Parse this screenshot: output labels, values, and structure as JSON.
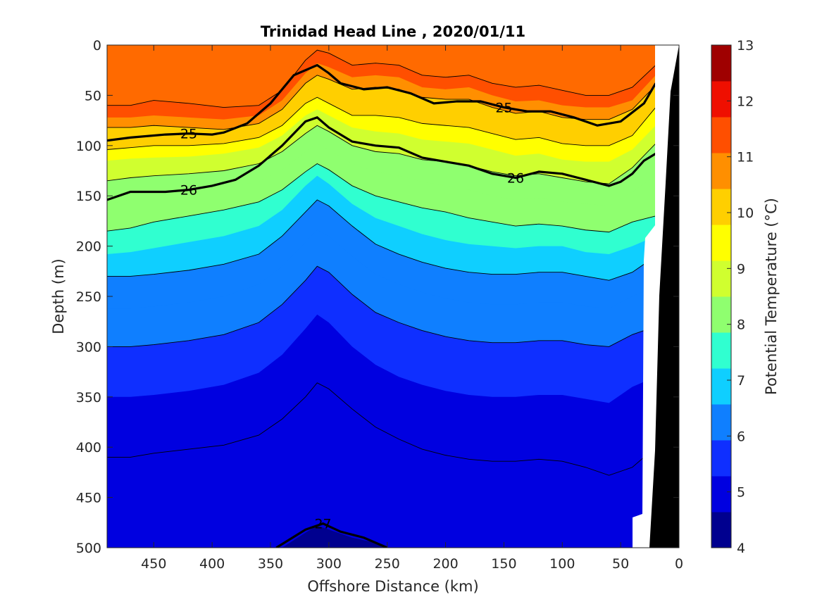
{
  "chart_data": {
    "type": "contour",
    "title": "Trinidad Head Line , 2020/01/11",
    "xlabel": "Offshore Distance (km)",
    "ylabel": "Depth (m)",
    "colorbar_label": "Potential Temperature (°C)",
    "xlim": [
      490,
      0
    ],
    "ylim": [
      500,
      0
    ],
    "x_ticks": [
      "450",
      "400",
      "350",
      "300",
      "250",
      "200",
      "150",
      "100",
      "50",
      "0"
    ],
    "y_ticks": [
      "0",
      "50",
      "100",
      "150",
      "200",
      "250",
      "300",
      "350",
      "400",
      "450",
      "500"
    ],
    "colorbar_ticks": [
      "4",
      "5",
      "6",
      "7",
      "8",
      "9",
      "10",
      "11",
      "12",
      "13"
    ],
    "colorbar_range": [
      4,
      13
    ],
    "colormap": [
      "#00008f",
      "#0000e0",
      "#0f2fff",
      "#0f7fff",
      "#0fcfff",
      "#30ffd0",
      "#8fff6f",
      "#d0ff2f",
      "#ffff00",
      "#ffcf00",
      "#ff8f00",
      "#ff4f00",
      "#ef0f00",
      "#9f0000"
    ],
    "x_offshore_km": [
      490,
      470,
      450,
      420,
      390,
      360,
      340,
      320,
      310,
      300,
      280,
      260,
      240,
      220,
      200,
      180,
      160,
      140,
      120,
      100,
      80,
      60,
      40,
      20
    ],
    "temperature_isotherm_depths_m": [
      {
        "level": 12,
        "depths": [
          60,
          60,
          55,
          58,
          62,
          60,
          45,
          15,
          5,
          8,
          20,
          18,
          20,
          30,
          32,
          30,
          38,
          42,
          40,
          45,
          50,
          50,
          42,
          20
        ]
      },
      {
        "level": 11.5,
        "depths": [
          72,
          72,
          70,
          72,
          74,
          70,
          55,
          28,
          18,
          22,
          32,
          30,
          32,
          42,
          44,
          42,
          50,
          56,
          55,
          60,
          62,
          62,
          55,
          30
        ]
      },
      {
        "level": 11,
        "depths": [
          82,
          82,
          80,
          82,
          84,
          78,
          64,
          38,
          30,
          34,
          44,
          42,
          44,
          52,
          54,
          54,
          62,
          68,
          66,
          72,
          74,
          74,
          64,
          40
        ]
      },
      {
        "level": 10.5,
        "depths": [
          95,
          94,
          92,
          92,
          92,
          84,
          72,
          48,
          40,
          46,
          56,
          54,
          56,
          64,
          66,
          66,
          72,
          78,
          78,
          82,
          86,
          86,
          76,
          50
        ]
      },
      {
        "level": 10,
        "depths": [
          104,
          102,
          100,
          100,
          98,
          92,
          80,
          58,
          52,
          58,
          70,
          70,
          72,
          78,
          80,
          82,
          88,
          94,
          92,
          98,
          100,
          100,
          90,
          62
        ]
      },
      {
        "level": 9.5,
        "depths": [
          115,
          113,
          112,
          111,
          108,
          102,
          90,
          70,
          64,
          70,
          82,
          86,
          88,
          94,
          96,
          98,
          104,
          110,
          108,
          114,
          116,
          116,
          104,
          80
        ]
      },
      {
        "level": 9,
        "depths": [
          135,
          132,
          130,
          128,
          125,
          118,
          106,
          88,
          80,
          86,
          100,
          106,
          108,
          114,
          116,
          120,
          126,
          130,
          128,
          132,
          136,
          138,
          122,
          98
        ]
      },
      {
        "level": 8.5,
        "depths": [
          158,
          154,
          150,
          147,
          142,
          136,
          124,
          106,
          98,
          104,
          118,
          126,
          130,
          136,
          140,
          144,
          150,
          154,
          152,
          156,
          158,
          160,
          146,
          130
        ]
      },
      {
        "level": 8,
        "depths": [
          185,
          182,
          176,
          170,
          164,
          156,
          144,
          126,
          118,
          124,
          140,
          150,
          156,
          162,
          166,
          172,
          176,
          180,
          178,
          180,
          184,
          186,
          176,
          170
        ]
      },
      {
        "level": 7.5,
        "depths": [
          208,
          206,
          202,
          196,
          190,
          180,
          164,
          140,
          130,
          138,
          158,
          172,
          180,
          188,
          194,
          198,
          200,
          202,
          200,
          200,
          206,
          208,
          200,
          190
        ]
      },
      {
        "level": 7,
        "depths": [
          230,
          230,
          228,
          224,
          218,
          208,
          190,
          166,
          154,
          160,
          180,
          198,
          208,
          216,
          222,
          226,
          228,
          228,
          226,
          226,
          230,
          234,
          226,
          210
        ]
      },
      {
        "level": 6.5,
        "depths": [
          262,
          262,
          260,
          256,
          250,
          238,
          220,
          196,
          184,
          190,
          210,
          228,
          238,
          246,
          252,
          256,
          258,
          258,
          256,
          256,
          260,
          262,
          250,
          240
        ]
      },
      {
        "level": 6,
        "depths": [
          300,
          300,
          298,
          294,
          288,
          276,
          258,
          234,
          220,
          226,
          248,
          266,
          276,
          284,
          290,
          294,
          296,
          296,
          294,
          294,
          298,
          300,
          288,
          280
        ]
      },
      {
        "level": 5.5,
        "depths": [
          350,
          350,
          348,
          344,
          338,
          326,
          308,
          282,
          268,
          276,
          300,
          318,
          330,
          338,
          344,
          348,
          350,
          350,
          348,
          348,
          352,
          356,
          340,
          330
        ]
      },
      {
        "level": 5,
        "depths": [
          410,
          410,
          406,
          402,
          398,
          388,
          372,
          350,
          336,
          342,
          362,
          380,
          392,
          402,
          408,
          412,
          414,
          414,
          412,
          414,
          420,
          428,
          420,
          400
        ]
      },
      {
        "level": 4.5,
        "depths": [
          560,
          560,
          560,
          560,
          560,
          520,
          500,
          485,
          478,
          482,
          490,
          495,
          505,
          560,
          560,
          560,
          560,
          560,
          560,
          560,
          560,
          560,
          560,
          560
        ]
      }
    ],
    "density_contours": [
      {
        "label": "25",
        "x": [
          490,
          470,
          440,
          420,
          400,
          390,
          370,
          350,
          330,
          310,
          300,
          290,
          270,
          250,
          230,
          210,
          190,
          170,
          150,
          130,
          110,
          90,
          70,
          50,
          30,
          20
        ],
        "y": [
          95,
          92,
          89,
          88,
          89,
          87,
          78,
          58,
          30,
          20,
          28,
          38,
          44,
          42,
          48,
          58,
          56,
          56,
          62,
          66,
          66,
          72,
          80,
          76,
          58,
          38
        ]
      },
      {
        "label": "26",
        "x": [
          490,
          470,
          440,
          420,
          400,
          380,
          360,
          340,
          320,
          310,
          300,
          280,
          260,
          240,
          220,
          200,
          180,
          160,
          140,
          120,
          100,
          80,
          60,
          50,
          40,
          30,
          20
        ],
        "y": [
          154,
          146,
          146,
          144,
          140,
          134,
          120,
          100,
          76,
          72,
          82,
          96,
          100,
          102,
          112,
          116,
          120,
          128,
          132,
          126,
          128,
          134,
          140,
          136,
          128,
          115,
          108
        ]
      },
      {
        "label": "27",
        "x": [
          345,
          320,
          305,
          290,
          270,
          250
        ],
        "y": [
          500,
          482,
          476,
          484,
          490,
          500
        ]
      }
    ]
  }
}
